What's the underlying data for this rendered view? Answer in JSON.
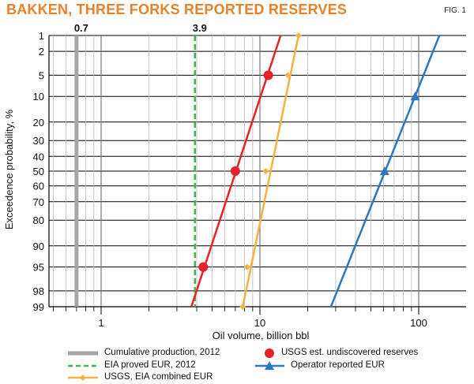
{
  "title": "BAKKEN, THREE FORKS REPORTED RESERVES",
  "figure_label": "FIG. 1",
  "chart_data": {
    "type": "line",
    "title": "BAKKEN, THREE FORKS REPORTED RESERVES",
    "xlabel": "Oil volume, billion bbl",
    "ylabel": "Exceedence probability, %",
    "x_scale": "log",
    "xlim": [
      0.5,
      200
    ],
    "x_ticks": [
      1,
      10,
      100
    ],
    "y_scale": "probability",
    "y_ticks": [
      1,
      2,
      5,
      10,
      20,
      30,
      40,
      50,
      60,
      70,
      80,
      90,
      95,
      98,
      99
    ],
    "grid": true,
    "legend_position": "bottom",
    "vertical_lines": [
      {
        "name": "Cumulative production, 2012",
        "x": 0.7,
        "label": "0.7",
        "color": "#a6a6a6",
        "style": "solid-thick"
      },
      {
        "name": "EIA proved EUR, 2012",
        "x": 3.9,
        "label": "3.9",
        "color": "#3cb44b",
        "style": "dashed"
      }
    ],
    "series": [
      {
        "name": "USGS est. undiscovered reserves",
        "color": "#e8202a",
        "marker": "circle",
        "line": [
          {
            "x": 3.7,
            "p": 99
          },
          {
            "x": 13.5,
            "p": 1
          }
        ],
        "points": [
          {
            "x": 4.4,
            "p": 95
          },
          {
            "x": 7.0,
            "p": 50
          },
          {
            "x": 11.3,
            "p": 5
          }
        ]
      },
      {
        "name": "USGS, EIA combined EUR",
        "color": "#f6b142",
        "marker": "diamond",
        "line": [
          {
            "x": 7.8,
            "p": 99
          },
          {
            "x": 17.5,
            "p": 1
          }
        ],
        "points": [
          {
            "x": 7.8,
            "p": 99
          },
          {
            "x": 8.3,
            "p": 95
          },
          {
            "x": 10.9,
            "p": 50
          },
          {
            "x": 15.0,
            "p": 5
          },
          {
            "x": 17.5,
            "p": 1
          }
        ]
      },
      {
        "name": "Operator reported EUR",
        "color": "#2e78c2",
        "marker": "triangle",
        "line": [
          {
            "x": 28.0,
            "p": 99
          },
          {
            "x": 135.0,
            "p": 1
          }
        ],
        "points": [
          {
            "x": 61.0,
            "p": 50
          },
          {
            "x": 95.0,
            "p": 10
          }
        ]
      }
    ]
  },
  "legend": {
    "cumulative": "Cumulative production, 2012",
    "eia": "EIA proved EUR, 2012",
    "combined": "USGS, EIA combined EUR",
    "usgs": "USGS est. undiscovered reserves",
    "operator": "Operator reported EUR"
  }
}
